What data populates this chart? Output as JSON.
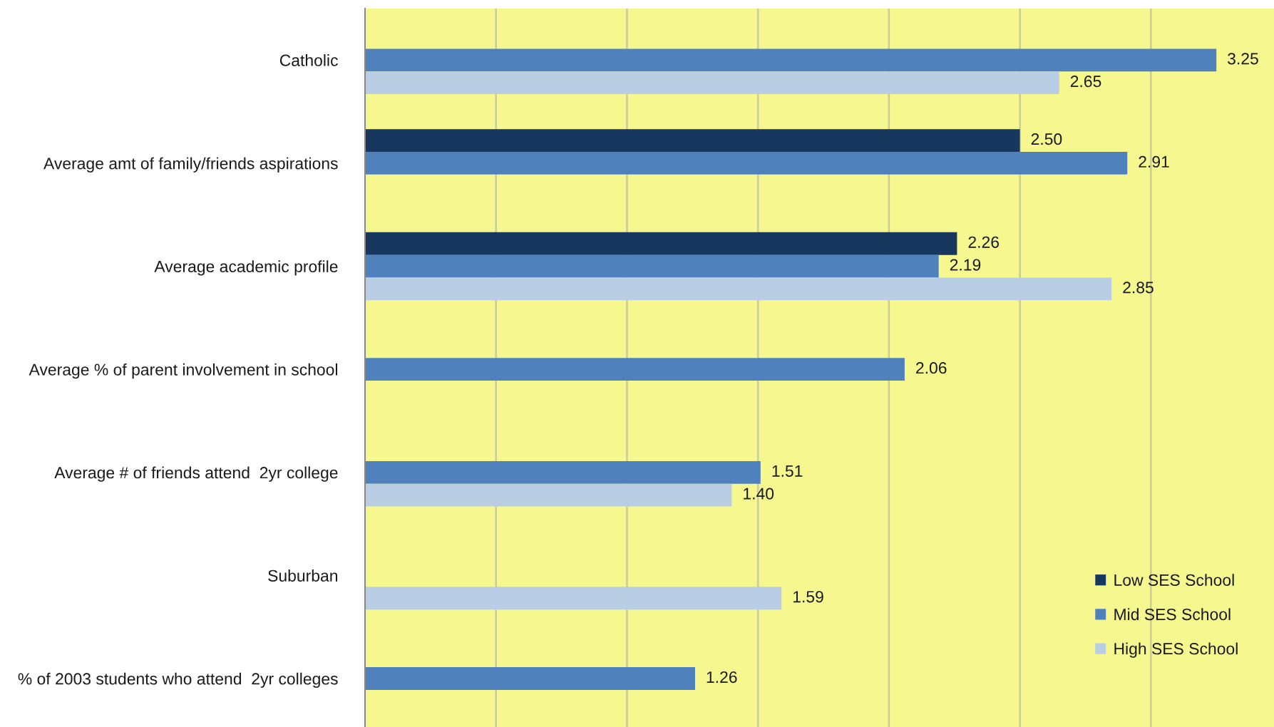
{
  "chart_data": {
    "type": "bar",
    "orientation": "horizontal",
    "categories": [
      "Catholic",
      "Average amt of family/friends aspirations",
      "Average academic profile",
      "Average % of parent involvement in school",
      "Average # of friends attend  2yr college",
      "Suburban",
      "% of 2003 students who attend  2yr colleges"
    ],
    "series": [
      {
        "name": "Low SES School",
        "color": "#17375e",
        "values": [
          null,
          2.5,
          2.26,
          null,
          null,
          null,
          null
        ],
        "value_labels": [
          null,
          "2.50",
          "2.26",
          null,
          null,
          null,
          null
        ]
      },
      {
        "name": "Mid SES School",
        "color": "#4f81bd",
        "values": [
          3.25,
          2.91,
          2.19,
          2.06,
          1.51,
          null,
          1.26
        ],
        "value_labels": [
          "3.25",
          "2.91",
          "2.19",
          "2.06",
          "1.51",
          null,
          "1.26"
        ]
      },
      {
        "name": "High SES School",
        "color": "#b9cde5",
        "values": [
          2.65,
          null,
          2.85,
          null,
          1.4,
          1.59,
          null
        ],
        "value_labels": [
          "2.65",
          null,
          "2.85",
          null,
          "1.40",
          "1.59",
          null
        ]
      }
    ],
    "xlim": [
      0,
      3.47
    ],
    "xticks": [
      {
        "value": 0.5,
        "label": null
      },
      {
        "value": 1,
        "label": null
      },
      {
        "value": 1.5,
        "label": null
      },
      {
        "value": 2,
        "label": null
      },
      {
        "value": 2.5,
        "label": null
      },
      {
        "value": 3,
        "label": null
      }
    ],
    "grid": "x",
    "legend": "bottom right",
    "tick_labels": "y"
  }
}
